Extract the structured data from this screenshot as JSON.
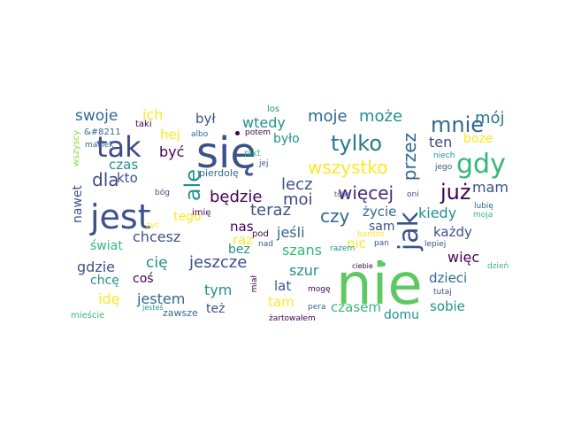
{
  "palette": {
    "deep_purple": "#440154",
    "indigo": "#3b528b",
    "blue": "#31688e",
    "teal": "#21918c",
    "green": "#35b779",
    "lime": "#5ec962",
    "yellow": "#fde725",
    "light_green": "#90d743"
  },
  "words": [
    {
      "text": "nie",
      "color": "#5ec962"
    },
    {
      "text": "się",
      "color": "#3b528b"
    },
    {
      "text": "jest",
      "color": "#3b528b"
    },
    {
      "text": "tak",
      "color": "#3e4a89"
    },
    {
      "text": "jak",
      "color": "#3b528b"
    },
    {
      "text": "gdy",
      "color": "#35b779"
    },
    {
      "text": "mnie",
      "color": "#31688e"
    },
    {
      "text": "tylko",
      "color": "#2a788e"
    },
    {
      "text": "już",
      "color": "#440154"
    },
    {
      "text": "ale",
      "color": "#21918c"
    },
    {
      "text": "wszystko",
      "color": "#fde725"
    },
    {
      "text": "przez",
      "color": "#31688e"
    },
    {
      "text": "dla",
      "color": "#3e4a89"
    },
    {
      "text": "będzie",
      "color": "#440154"
    },
    {
      "text": "więcej",
      "color": "#482878"
    },
    {
      "text": "czy",
      "color": "#31688e"
    },
    {
      "text": "lecz",
      "color": "#3b528b"
    },
    {
      "text": "moi",
      "color": "#3e4a89"
    },
    {
      "text": "teraz",
      "color": "#3b528b"
    },
    {
      "text": "mam",
      "color": "#3b528b"
    },
    {
      "text": "mój",
      "color": "#2a788e"
    },
    {
      "text": "ten",
      "color": "#3e4a89"
    },
    {
      "text": "boże",
      "color": "#fde725"
    },
    {
      "text": "moje",
      "color": "#31688e"
    },
    {
      "text": "może",
      "color": "#21918c"
    },
    {
      "text": "swoje",
      "color": "#31688e"
    },
    {
      "text": "ich",
      "color": "#fde725"
    },
    {
      "text": "był",
      "color": "#3b528b"
    },
    {
      "text": "wtedy",
      "color": "#21918c"
    },
    {
      "text": "hej",
      "color": "#fde725"
    },
    {
      "text": "być",
      "color": "#440154"
    },
    {
      "text": "było",
      "color": "#21918c"
    },
    {
      "text": "kto",
      "color": "#3b528b"
    },
    {
      "text": "czas",
      "color": "#21918c"
    },
    {
      "text": "nawet",
      "color": "#3b528b"
    },
    {
      "text": "tego",
      "color": "#fde725"
    },
    {
      "text": "chcesz",
      "color": "#3b528b"
    },
    {
      "text": "świat",
      "color": "#35b779"
    },
    {
      "text": "nas",
      "color": "#440154"
    },
    {
      "text": "jeśli",
      "color": "#31688e"
    },
    {
      "text": "raz",
      "color": "#fde725"
    },
    {
      "text": "bez",
      "color": "#21918c"
    },
    {
      "text": "życie",
      "color": "#31688e"
    },
    {
      "text": "kiedy",
      "color": "#21918c"
    },
    {
      "text": "sam",
      "color": "#3b528b"
    },
    {
      "text": "każdy",
      "color": "#3b528b"
    },
    {
      "text": "nic",
      "color": "#fde725"
    },
    {
      "text": "więc",
      "color": "#440154"
    },
    {
      "text": "gdzie",
      "color": "#3b528b"
    },
    {
      "text": "cię",
      "color": "#21918c"
    },
    {
      "text": "jeszcze",
      "color": "#3b528b"
    },
    {
      "text": "szans",
      "color": "#35b779"
    },
    {
      "text": "szur",
      "color": "#21918c"
    },
    {
      "text": "dzieci",
      "color": "#31688e"
    },
    {
      "text": "chcę",
      "color": "#21918c"
    },
    {
      "text": "coś",
      "color": "#440154"
    },
    {
      "text": "tym",
      "color": "#21918c"
    },
    {
      "text": "lat",
      "color": "#3b528b"
    },
    {
      "text": "idę",
      "color": "#fde725"
    },
    {
      "text": "jestem",
      "color": "#31688e"
    },
    {
      "text": "tam",
      "color": "#fde725"
    },
    {
      "text": "czasem",
      "color": "#35b779"
    },
    {
      "text": "sobie",
      "color": "#21918c"
    },
    {
      "text": "domu",
      "color": "#21918c"
    },
    {
      "text": "też",
      "color": "#3b528b"
    },
    {
      "text": "zawsze",
      "color": "#31688e"
    },
    {
      "text": "mieście",
      "color": "#35b779"
    },
    {
      "text": "jesteś",
      "color": "#21918c"
    },
    {
      "text": "żartowałem",
      "color": "#440154"
    },
    {
      "text": "pera",
      "color": "#31688e"
    },
    {
      "text": "mogę",
      "color": "#440154"
    },
    {
      "text": "tutaj",
      "color": "#3b528b"
    },
    {
      "text": "ciebie",
      "color": "#440154"
    },
    {
      "text": "dzień",
      "color": "#35b779"
    },
    {
      "text": "lepiej",
      "color": "#3b528b"
    },
    {
      "text": "pan",
      "color": "#3b528b"
    },
    {
      "text": "razem",
      "color": "#21918c"
    },
    {
      "text": "bardzo",
      "color": "#fde725"
    },
    {
      "text": "oni",
      "color": "#3b528b"
    },
    {
      "text": "lubię",
      "color": "#31688e"
    },
    {
      "text": "moja",
      "color": "#35b779"
    },
    {
      "text": "jego",
      "color": "#3b528b"
    },
    {
      "text": "niech",
      "color": "#21918c"
    },
    {
      "text": "tobą",
      "color": "#3b528b"
    },
    {
      "text": "los",
      "color": "#21918c"
    },
    {
      "text": "potem",
      "color": "#440154"
    },
    {
      "text": "albo",
      "color": "#31688e"
    },
    {
      "text": "taki",
      "color": "#440154"
    },
    {
      "text": "&#8211",
      "color": "#31688e"
    },
    {
      "text": "wszyscy",
      "color": "#90d743"
    },
    {
      "text": "maciek",
      "color": "#31688e"
    },
    {
      "text": "nikt",
      "color": "#35b779"
    },
    {
      "text": "jej",
      "color": "#3b528b"
    },
    {
      "text": "pierdolę",
      "color": "#31688e"
    },
    {
      "text": "bóg",
      "color": "#3b528b"
    },
    {
      "text": "imię",
      "color": "#440154"
    },
    {
      "text": "żyć",
      "color": "#fde725"
    },
    {
      "text": "pod",
      "color": "#440154"
    },
    {
      "text": "nad",
      "color": "#3b528b"
    },
    {
      "text": "był",
      "color": "#440154"
    },
    {
      "text": "miał",
      "color": "#440154"
    }
  ]
}
